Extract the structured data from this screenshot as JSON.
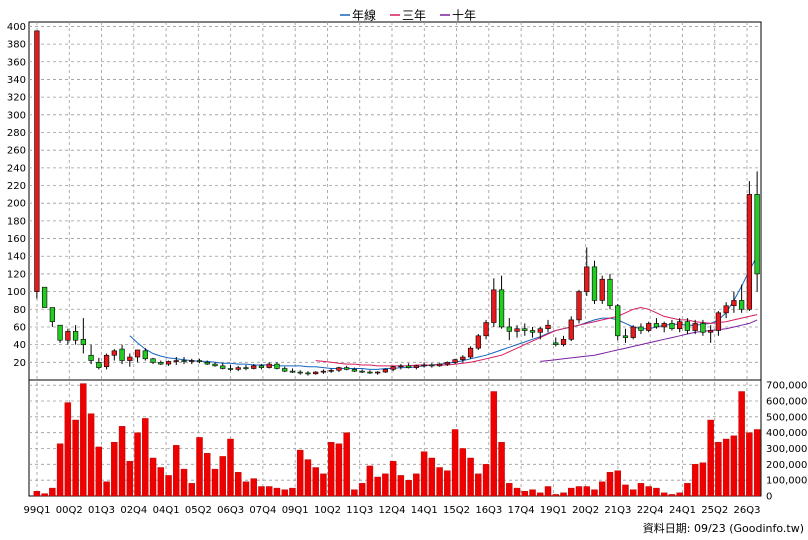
{
  "legend": {
    "items": [
      {
        "name": "年線",
        "color": "#1565c0"
      },
      {
        "name": "三年",
        "color": "#d81b60"
      },
      {
        "name": "十年",
        "color": "#7b1fa2"
      }
    ]
  },
  "credit": "資料日期: 09/23 (Goodinfo.tw)",
  "colors": {
    "up": "#e41a1c",
    "down": "#22cc22",
    "volume": "#ee0000",
    "grid": "#9a9a9a",
    "wick": "#000000"
  },
  "chart_data": {
    "type": "candlestick+bar",
    "x_labels": [
      "99Q1",
      "00Q2",
      "01Q3",
      "02Q4",
      "04Q1",
      "05Q2",
      "06Q3",
      "07Q4",
      "09Q1",
      "10Q2",
      "11Q3",
      "12Q4",
      "14Q1",
      "15Q2",
      "16Q3",
      "17Q4",
      "19Q1",
      "20Q2",
      "21Q3",
      "22Q4",
      "24Q1",
      "25Q2",
      "26Q3"
    ],
    "price_axis": {
      "ticks": [
        20,
        40,
        60,
        80,
        100,
        120,
        140,
        160,
        180,
        200,
        220,
        240,
        260,
        280,
        300,
        320,
        340,
        360,
        380,
        400
      ],
      "ylim": [
        0,
        405
      ]
    },
    "volume_axis": {
      "ticks": [
        "0",
        "100,000",
        "200,000",
        "300,000",
        "400,000",
        "500,000",
        "600,000",
        "700,000"
      ],
      "ylim": [
        0,
        720000
      ]
    },
    "grid": true,
    "legend_position": "top-center",
    "series": [
      {
        "name": "年線",
        "kind": "line",
        "values": [
          null,
          null,
          null,
          null,
          null,
          null,
          null,
          null,
          null,
          null,
          null,
          null,
          50,
          42,
          35,
          30,
          27,
          25,
          24,
          23,
          22,
          21,
          21,
          20,
          19,
          19,
          18,
          18,
          17,
          17,
          17,
          16,
          16,
          16,
          16,
          15,
          15,
          14,
          13,
          13,
          13,
          13,
          13,
          12,
          12,
          13,
          13,
          14,
          14,
          15,
          16,
          17,
          18,
          19,
          20,
          22,
          24,
          26,
          28,
          31,
          34,
          37,
          40,
          43,
          46,
          49,
          53,
          56,
          58,
          60,
          62,
          65,
          68,
          70,
          70,
          68,
          64,
          60,
          58,
          58,
          60,
          62,
          63,
          63,
          62,
          62,
          63,
          64,
          68,
          76,
          90,
          106,
          124,
          140
        ]
      },
      {
        "name": "三年",
        "kind": "line",
        "values": [
          null,
          null,
          null,
          null,
          null,
          null,
          null,
          null,
          null,
          null,
          null,
          null,
          null,
          null,
          null,
          null,
          null,
          null,
          null,
          null,
          null,
          null,
          null,
          null,
          null,
          null,
          null,
          null,
          null,
          null,
          null,
          null,
          null,
          null,
          null,
          null,
          22,
          21,
          20,
          19,
          18,
          18,
          17,
          17,
          16,
          16,
          16,
          16,
          16,
          17,
          17,
          17,
          17,
          17,
          18,
          19,
          20,
          22,
          24,
          26,
          28,
          32,
          36,
          40,
          44,
          48,
          52,
          56,
          58,
          60,
          62,
          64,
          66,
          68,
          70,
          72,
          76,
          80,
          82,
          80,
          76,
          72,
          70,
          68,
          68,
          66,
          65,
          64,
          65,
          66,
          68,
          70,
          72,
          74
        ]
      },
      {
        "name": "十年",
        "kind": "line",
        "values": [
          null,
          null,
          null,
          null,
          null,
          null,
          null,
          null,
          null,
          null,
          null,
          null,
          null,
          null,
          null,
          null,
          null,
          null,
          null,
          null,
          null,
          null,
          null,
          null,
          null,
          null,
          null,
          null,
          null,
          null,
          null,
          null,
          null,
          null,
          null,
          null,
          null,
          null,
          null,
          null,
          null,
          null,
          null,
          null,
          null,
          null,
          null,
          null,
          null,
          null,
          null,
          null,
          null,
          null,
          null,
          null,
          null,
          null,
          null,
          null,
          null,
          null,
          null,
          null,
          null,
          21,
          22,
          23,
          24,
          25,
          26,
          27,
          28,
          30,
          32,
          34,
          36,
          38,
          40,
          42,
          44,
          46,
          48,
          50,
          52,
          54,
          55,
          56,
          57,
          58,
          60,
          62,
          64,
          68
        ]
      },
      {
        "name": "K",
        "kind": "candlestick",
        "ohlc": [
          [
            100,
            395,
            92,
            395
          ],
          [
            105,
            105,
            82,
            82
          ],
          [
            82,
            82,
            60,
            66
          ],
          [
            62,
            62,
            42,
            45
          ],
          [
            45,
            58,
            40,
            55
          ],
          [
            55,
            62,
            40,
            45
          ],
          [
            46,
            70,
            30,
            40
          ],
          [
            28,
            40,
            18,
            22
          ],
          [
            20,
            25,
            12,
            14
          ],
          [
            15,
            30,
            12,
            28
          ],
          [
            28,
            35,
            22,
            33
          ],
          [
            35,
            40,
            18,
            22
          ],
          [
            22,
            30,
            15,
            26
          ],
          [
            26,
            34,
            20,
            34
          ],
          [
            33,
            36,
            22,
            24
          ],
          [
            24,
            25,
            18,
            20
          ],
          [
            20,
            22,
            17,
            18
          ],
          [
            18,
            22,
            16,
            21
          ],
          [
            21,
            26,
            17,
            22
          ],
          [
            22,
            26,
            18,
            21
          ],
          [
            21,
            24,
            18,
            22
          ],
          [
            22,
            24,
            19,
            21
          ],
          [
            20,
            22,
            17,
            18
          ],
          [
            18,
            20,
            15,
            16
          ],
          [
            16,
            19,
            12,
            13
          ],
          [
            13,
            17,
            10,
            12
          ],
          [
            12,
            16,
            10,
            14
          ],
          [
            14,
            17,
            11,
            13
          ],
          [
            13,
            18,
            12,
            16
          ],
          [
            16,
            18,
            12,
            14
          ],
          [
            14,
            20,
            13,
            18
          ],
          [
            18,
            20,
            12,
            13
          ],
          [
            13,
            15,
            9,
            10
          ],
          [
            10,
            13,
            8,
            9
          ],
          [
            9,
            11,
            6,
            8
          ],
          [
            8,
            10,
            5,
            7
          ],
          [
            7,
            10,
            6,
            9
          ],
          [
            9,
            12,
            7,
            10
          ],
          [
            10,
            13,
            8,
            11
          ],
          [
            11,
            15,
            9,
            14
          ],
          [
            14,
            16,
            11,
            12
          ],
          [
            12,
            14,
            9,
            10
          ],
          [
            10,
            12,
            8,
            9
          ],
          [
            9,
            11,
            7,
            8
          ],
          [
            8,
            10,
            6,
            9
          ],
          [
            9,
            13,
            8,
            12
          ],
          [
            12,
            16,
            10,
            15
          ],
          [
            15,
            18,
            12,
            16
          ],
          [
            16,
            19,
            13,
            14
          ],
          [
            14,
            17,
            12,
            16
          ],
          [
            16,
            20,
            14,
            17
          ],
          [
            17,
            19,
            14,
            16
          ],
          [
            16,
            19,
            15,
            18
          ],
          [
            18,
            21,
            16,
            20
          ],
          [
            20,
            24,
            18,
            23
          ],
          [
            23,
            28,
            20,
            26
          ],
          [
            26,
            38,
            24,
            36
          ],
          [
            36,
            52,
            34,
            50
          ],
          [
            50,
            68,
            46,
            65
          ],
          [
            65,
            115,
            60,
            102
          ],
          [
            102,
            118,
            58,
            60
          ],
          [
            60,
            70,
            45,
            55
          ],
          [
            55,
            62,
            48,
            58
          ],
          [
            58,
            64,
            50,
            56
          ],
          [
            56,
            60,
            48,
            54
          ],
          [
            54,
            60,
            46,
            58
          ],
          [
            58,
            68,
            54,
            62
          ],
          [
            42,
            48,
            38,
            40
          ],
          [
            40,
            50,
            38,
            46
          ],
          [
            46,
            72,
            44,
            68
          ],
          [
            68,
            102,
            64,
            100
          ],
          [
            100,
            150,
            95,
            128
          ],
          [
            128,
            135,
            86,
            90
          ],
          [
            90,
            118,
            86,
            114
          ],
          [
            114,
            120,
            80,
            84
          ],
          [
            84,
            86,
            45,
            50
          ],
          [
            50,
            58,
            42,
            48
          ],
          [
            48,
            62,
            46,
            60
          ],
          [
            60,
            64,
            52,
            56
          ],
          [
            56,
            66,
            54,
            64
          ],
          [
            64,
            70,
            58,
            60
          ],
          [
            60,
            66,
            54,
            64
          ],
          [
            64,
            68,
            56,
            58
          ],
          [
            58,
            70,
            54,
            66
          ],
          [
            66,
            70,
            52,
            56
          ],
          [
            56,
            68,
            52,
            64
          ],
          [
            64,
            68,
            50,
            54
          ],
          [
            54,
            62,
            42,
            56
          ],
          [
            56,
            78,
            50,
            76
          ],
          [
            76,
            88,
            70,
            84
          ],
          [
            84,
            100,
            76,
            90
          ],
          [
            90,
            108,
            76,
            80
          ],
          [
            80,
            225,
            78,
            210
          ],
          [
            210,
            236,
            100,
            120
          ]
        ]
      },
      {
        "name": "成交量",
        "kind": "bar",
        "values": [
          30000,
          15000,
          50000,
          330000,
          590000,
          480000,
          710000,
          520000,
          310000,
          90000,
          340000,
          440000,
          220000,
          400000,
          490000,
          240000,
          180000,
          130000,
          320000,
          170000,
          80000,
          370000,
          270000,
          170000,
          250000,
          360000,
          150000,
          90000,
          110000,
          60000,
          60000,
          50000,
          40000,
          50000,
          290000,
          230000,
          180000,
          140000,
          340000,
          330000,
          400000,
          40000,
          80000,
          190000,
          120000,
          140000,
          220000,
          130000,
          100000,
          140000,
          280000,
          240000,
          180000,
          160000,
          420000,
          300000,
          240000,
          140000,
          200000,
          660000,
          340000,
          80000,
          50000,
          30000,
          40000,
          20000,
          60000,
          10000,
          20000,
          50000,
          60000,
          60000,
          40000,
          90000,
          150000,
          160000,
          70000,
          40000,
          80000,
          60000,
          50000,
          20000,
          10000,
          20000,
          80000,
          200000,
          210000,
          480000,
          340000,
          360000,
          380000,
          660000,
          400000,
          420000
        ]
      }
    ]
  }
}
